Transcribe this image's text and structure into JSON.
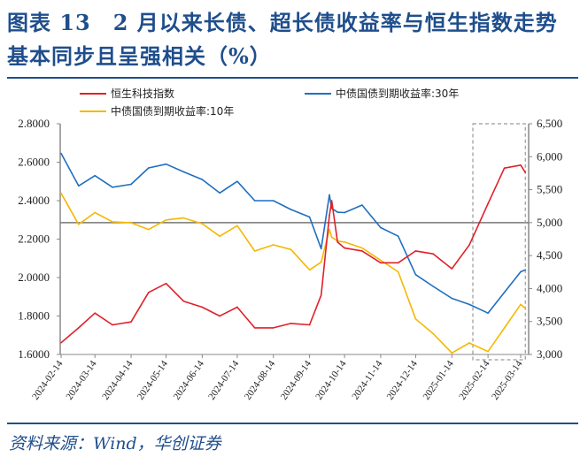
{
  "title_line1": "图表 13　2 月以来长债、超长债收益率与恒生指数走势",
  "title_line2": "基本同步且呈强相关（%）",
  "source": "资料来源：Wind，华创证券",
  "chart_data": {
    "type": "line",
    "title": "图表 13　2 月以来长债、超长债收益率与恒生指数走势基本同步且呈强相关（%）",
    "x_tick_labels": [
      "2024-02-14",
      "2024-03-14",
      "2024-04-14",
      "2024-05-14",
      "2024-06-14",
      "2024-07-14",
      "2024-08-14",
      "2024-09-14",
      "2024-10-14",
      "2024-11-14",
      "2024-12-14",
      "2025-01-14",
      "2025-02-14",
      "2025-03-14"
    ],
    "left_axis": {
      "ylim": [
        1.6,
        2.8
      ],
      "ticks": [
        "1.6000",
        "1.8000",
        "2.0000",
        "2.2000",
        "2.4000",
        "2.6000",
        "2.8000"
      ]
    },
    "right_axis": {
      "ylim": [
        3000,
        6500
      ],
      "ticks": [
        "3,000",
        "3,500",
        "4,000",
        "4,500",
        "5,000",
        "5,500",
        "6,000",
        "6,500"
      ]
    },
    "reference_line_right": 5000,
    "highlight_range": [
      "2025-02-01",
      "2025-03-18"
    ],
    "grid": false,
    "legend_placement": "top",
    "x": [
      "2024-02-14",
      "2024-02-29",
      "2024-03-14",
      "2024-03-29",
      "2024-04-14",
      "2024-04-29",
      "2024-05-14",
      "2024-05-29",
      "2024-06-14",
      "2024-06-29",
      "2024-07-14",
      "2024-07-29",
      "2024-08-14",
      "2024-08-29",
      "2024-09-14",
      "2024-09-24",
      "2024-10-01",
      "2024-10-03",
      "2024-10-08",
      "2024-10-14",
      "2024-10-29",
      "2024-11-14",
      "2024-11-29",
      "2024-12-14",
      "2024-12-29",
      "2025-01-14",
      "2025-01-29",
      "2025-02-14",
      "2025-02-28",
      "2025-03-14",
      "2025-03-18"
    ],
    "series": [
      {
        "name": "恒生科技指数",
        "axis": "right",
        "color": "#E0202A",
        "values": [
          3179,
          3404,
          3628,
          3449,
          3494,
          3942,
          4077,
          3808,
          3718,
          3583,
          3718,
          3404,
          3404,
          3471,
          3449,
          3900,
          5109,
          5333,
          4705,
          4615,
          4570,
          4391,
          4391,
          4570,
          4526,
          4301,
          4660,
          5288,
          5827,
          5872,
          5760
        ]
      },
      {
        "name": "中债国债到期收益率:30年",
        "axis": "left",
        "color": "#1F6FC0",
        "values": [
          2.646,
          2.477,
          2.53,
          2.47,
          2.485,
          2.57,
          2.59,
          2.55,
          2.51,
          2.44,
          2.5,
          2.4,
          2.4,
          2.354,
          2.315,
          2.15,
          2.43,
          2.36,
          2.34,
          2.338,
          2.377,
          2.26,
          2.215,
          2.015,
          1.954,
          1.892,
          1.86,
          1.815,
          1.923,
          2.03,
          2.04
        ]
      },
      {
        "name": "中债国债到期收益率:10年",
        "axis": "left",
        "color": "#F5B800",
        "values": [
          2.438,
          2.277,
          2.338,
          2.29,
          2.285,
          2.25,
          2.3,
          2.31,
          2.28,
          2.215,
          2.27,
          2.138,
          2.17,
          2.146,
          2.04,
          2.08,
          2.25,
          2.21,
          2.19,
          2.185,
          2.154,
          2.09,
          2.03,
          1.785,
          1.708,
          1.608,
          1.66,
          1.615,
          1.738,
          1.86,
          1.84
        ]
      }
    ]
  }
}
